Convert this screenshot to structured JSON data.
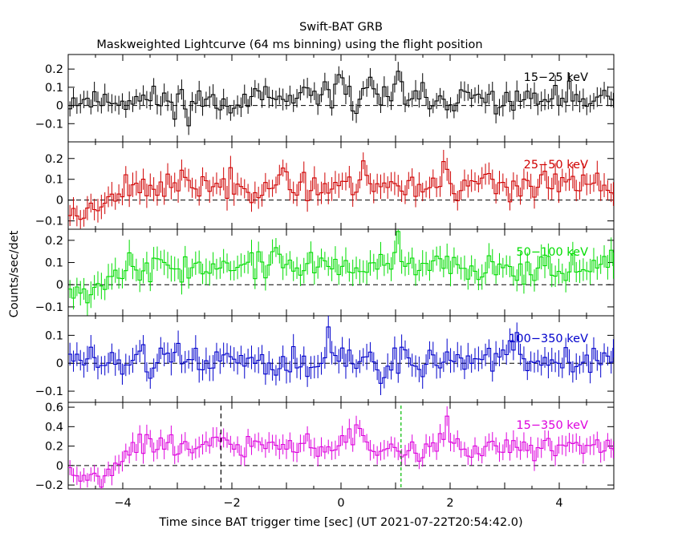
{
  "title": "Swift-BAT GRB",
  "subtitle": "Maskweighted Lightcurve (64 ms binning) using the flight position",
  "xlabel": "Time since BAT trigger time [sec] (UT 2021-07-22T20:54:42.0)",
  "ylabel": "Counts/sec/det",
  "x_range": [
    -5.0,
    5.0
  ],
  "x_ticks": [
    -4,
    -2,
    0,
    2,
    4
  ],
  "x_tick_labels": [
    "−4",
    "−2",
    "0",
    "2",
    "4"
  ],
  "bin_width": 0.064,
  "chart_data": {
    "type": "line",
    "panels": [
      {
        "id": "p1",
        "name": "15−25 keV",
        "color": "#000000",
        "ylim": [
          -0.2,
          0.28
        ],
        "ticks": [
          0.2,
          0.1,
          0,
          -0.1
        ],
        "tick_labels": [
          "0.2",
          "0.1",
          "0",
          "−0.1"
        ],
        "mean": 0.03,
        "noise": 0.055,
        "err": 0.05,
        "seed": 11,
        "features": [
          [
            0.0,
            0.2,
            0.11
          ],
          [
            0.55,
            0.23,
            0.06
          ],
          [
            1.05,
            0.2,
            0.06
          ],
          [
            -2.8,
            -0.08,
            0.05
          ]
        ]
      },
      {
        "id": "p2",
        "name": "25−50 keV",
        "color": "#d00000",
        "ylim": [
          -0.14,
          0.28
        ],
        "ticks": [
          0.2,
          0.1,
          0,
          -0.1
        ],
        "tick_labels": [
          "0.2",
          "0.1",
          "0",
          "−0.1"
        ],
        "mean": 0.07,
        "noise": 0.05,
        "err": 0.05,
        "seed": 23,
        "features": [
          [
            -4.8,
            -0.09,
            0.5
          ],
          [
            1.9,
            0.23,
            0.06
          ],
          [
            0.4,
            0.2,
            0.08
          ]
        ]
      },
      {
        "id": "p3",
        "name": "50−100 keV",
        "color": "#00dd00",
        "ylim": [
          -0.14,
          0.25
        ],
        "ticks": [
          0.2,
          0.1,
          0,
          -0.1
        ],
        "tick_labels": [
          "0.2",
          "0.1",
          "0",
          "−0.1"
        ],
        "mean": 0.08,
        "noise": 0.045,
        "err": 0.05,
        "seed": 37,
        "features": [
          [
            -4.7,
            -0.05,
            0.4
          ],
          [
            1.05,
            0.22,
            0.06
          ],
          [
            -1.2,
            0.18,
            0.1
          ]
        ]
      },
      {
        "id": "p4",
        "name": "100−350 keV",
        "color": "#0000cc",
        "ylim": [
          -0.14,
          0.17
        ],
        "ticks": [
          0.1,
          0,
          -0.1
        ],
        "tick_labels": [
          "0.1",
          "0",
          "−0.1"
        ],
        "mean": 0.01,
        "noise": 0.04,
        "err": 0.04,
        "seed": 51,
        "features": [
          [
            3.2,
            0.14,
            0.06
          ],
          [
            -0.2,
            0.13,
            0.08
          ],
          [
            -0.6,
            -0.1,
            0.06
          ],
          [
            0.7,
            -0.1,
            0.06
          ]
        ]
      },
      {
        "id": "p5",
        "name": "15−350 keV",
        "color": "#dd00dd",
        "ylim": [
          -0.24,
          0.65
        ],
        "ticks": [
          0.6,
          0.4,
          0.2,
          0,
          -0.2
        ],
        "tick_labels": [
          "0.6",
          "0.4",
          "0.2",
          "0",
          "−0.2"
        ],
        "mean": 0.2,
        "noise": 0.09,
        "err": 0.09,
        "seed": 67,
        "features": [
          [
            -4.6,
            -0.2,
            0.5
          ],
          [
            1.95,
            0.5,
            0.06
          ],
          [
            0.3,
            0.42,
            0.15
          ],
          [
            -2.2,
            0.35,
            0.1
          ]
        ]
      }
    ],
    "markers": [
      {
        "x": -2.2,
        "color": "#000000",
        "panel": "p5"
      },
      {
        "x": 1.1,
        "color": "#00bb00",
        "panel": "p5"
      }
    ]
  }
}
